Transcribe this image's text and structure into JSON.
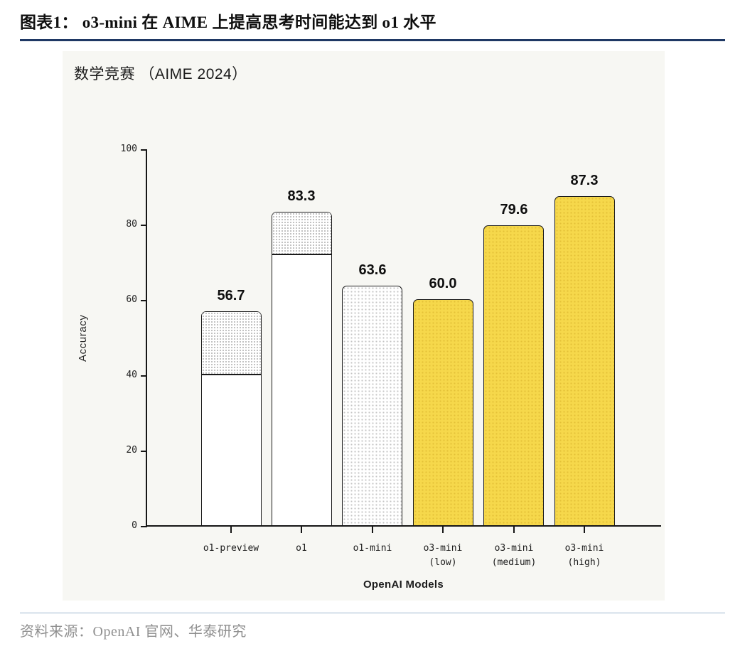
{
  "header": {
    "title": "图表1： o3-mini 在 AIME 上提高思考时间能达到 o1 水平"
  },
  "footer": {
    "source": "资料来源：OpenAI 官网、华泰研究"
  },
  "colors": {
    "accent_yellow": "#f6d84b",
    "panel_bg": "#f7f7f3",
    "title_underline": "#1f3864",
    "footer_divider": "#9db6cf",
    "source_text": "#8f8f8f",
    "bar_border": "#1a1a1a"
  },
  "chart_data": {
    "type": "bar",
    "title": "数学竞赛 （AIME 2024）",
    "xlabel": "OpenAI Models",
    "ylabel": "Accuracy",
    "ylim": [
      0,
      100
    ],
    "yticks": [
      0,
      20,
      40,
      60,
      80,
      100
    ],
    "grid": false,
    "legend": false,
    "categories": [
      "o1-preview",
      "o1",
      "o1-mini",
      "o3-mini (low)",
      "o3-mini (medium)",
      "o3-mini (high)"
    ],
    "values": [
      56.7,
      83.3,
      63.6,
      60.0,
      79.6,
      87.3
    ],
    "bars": [
      {
        "category_lines": [
          "o1-preview"
        ],
        "value": 56.7,
        "label": "56.7",
        "style": "white-split",
        "solid_top": 40
      },
      {
        "category_lines": [
          "o1"
        ],
        "value": 83.3,
        "label": "83.3",
        "style": "white-split",
        "solid_top": 72
      },
      {
        "category_lines": [
          "o1-mini"
        ],
        "value": 63.6,
        "label": "63.6",
        "style": "white-dotted"
      },
      {
        "category_lines": [
          "o3-mini",
          "(low)"
        ],
        "value": 60.0,
        "label": "60.0",
        "style": "yellow-dotted"
      },
      {
        "category_lines": [
          "o3-mini",
          "(medium)"
        ],
        "value": 79.6,
        "label": "79.6",
        "style": "yellow-dotted"
      },
      {
        "category_lines": [
          "o3-mini",
          "(high)"
        ],
        "value": 87.3,
        "label": "87.3",
        "style": "yellow-dotted"
      }
    ]
  }
}
